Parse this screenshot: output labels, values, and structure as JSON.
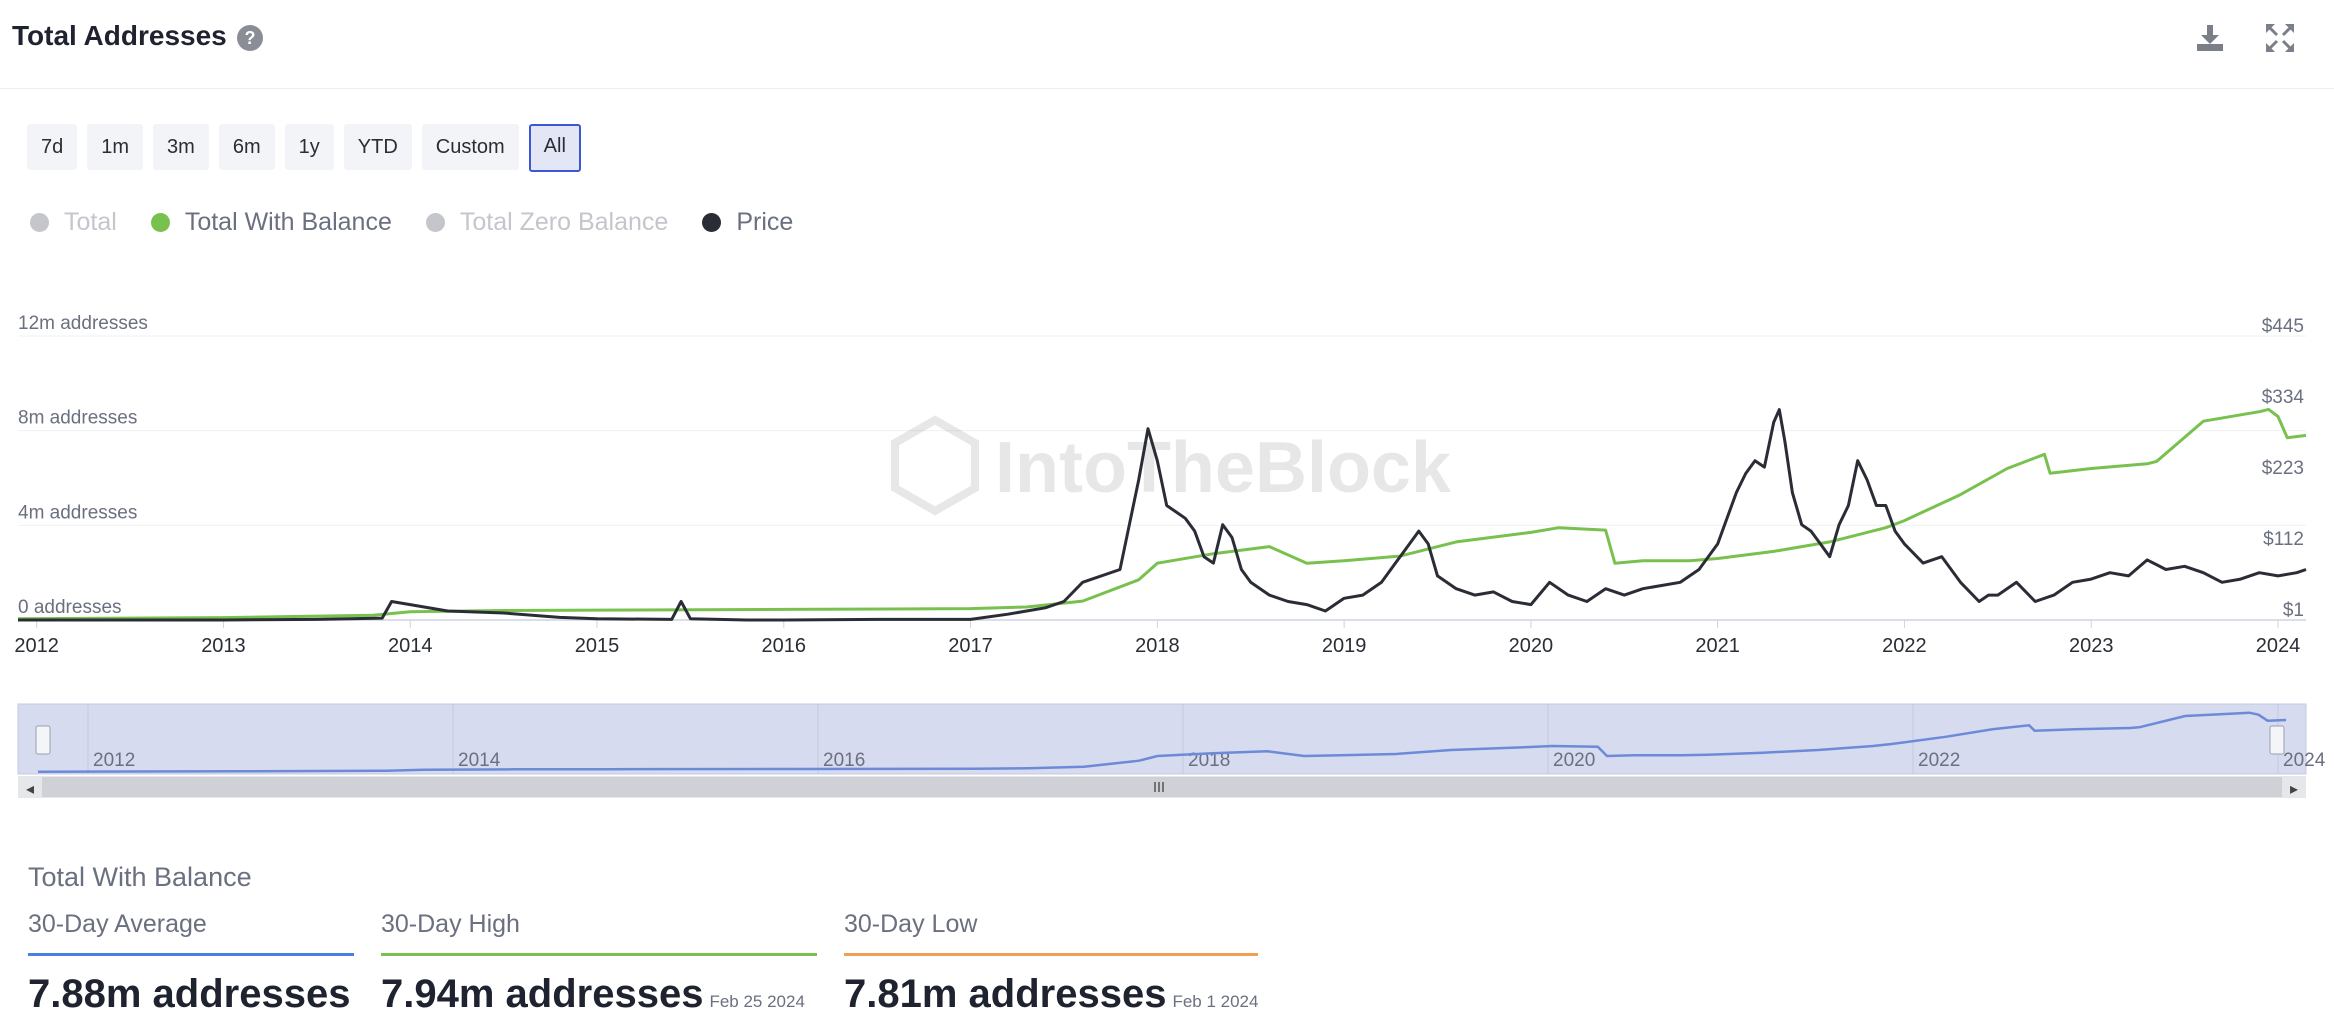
{
  "header": {
    "title": "Total Addresses",
    "help_icon": "question-circle-icon",
    "download_icon": "download-icon",
    "fullscreen_icon": "expand-icon"
  },
  "range_buttons": [
    "7d",
    "1m",
    "3m",
    "6m",
    "1y",
    "YTD",
    "Custom",
    "All"
  ],
  "range_selected": "All",
  "legend": [
    {
      "label": "Total",
      "color": "#c4c6cc",
      "active": false
    },
    {
      "label": "Total With Balance",
      "color": "#79c14f",
      "active": true
    },
    {
      "label": "Total Zero Balance",
      "color": "#c4c6cc",
      "active": false
    },
    {
      "label": "Price",
      "color": "#2a2d36",
      "active": true
    }
  ],
  "watermark": "IntoTheBlock",
  "chart_data": {
    "type": "line",
    "x_ticks": [
      "2012",
      "2013",
      "2014",
      "2015",
      "2016",
      "2017",
      "2018",
      "2019",
      "2020",
      "2021",
      "2022",
      "2023",
      "2024"
    ],
    "xlim": [
      2011.9,
      2024.15
    ],
    "y_left": {
      "ticks": [
        "0 addresses",
        "4m addresses",
        "8m addresses",
        "12m addresses"
      ],
      "range": [
        0,
        12000000
      ]
    },
    "y_right": {
      "ticks": [
        "$1",
        "$112",
        "$223",
        "$334",
        "$445"
      ],
      "range": [
        1,
        445
      ]
    },
    "series": [
      {
        "name": "Total With Balance",
        "axis": "left",
        "color": "#79c14f",
        "x": [
          2011.9,
          2013.0,
          2013.8,
          2014.0,
          2014.5,
          2015.0,
          2016.0,
          2017.0,
          2017.3,
          2017.6,
          2017.9,
          2018.0,
          2018.3,
          2018.6,
          2018.8,
          2019.0,
          2019.3,
          2019.6,
          2020.0,
          2020.15,
          2020.4,
          2020.45,
          2020.6,
          2020.85,
          2021.0,
          2021.3,
          2021.6,
          2021.9,
          2022.0,
          2022.3,
          2022.55,
          2022.75,
          2022.78,
          2023.0,
          2023.3,
          2023.35,
          2023.6,
          2023.9,
          2023.95,
          2024.0,
          2024.05,
          2024.15
        ],
        "values": [
          50000,
          100000,
          200000,
          350000,
          400000,
          420000,
          450000,
          480000,
          550000,
          800000,
          1700000,
          2400000,
          2800000,
          3100000,
          2400000,
          2500000,
          2700000,
          3300000,
          3700000,
          3900000,
          3800000,
          2400000,
          2500000,
          2500000,
          2600000,
          2900000,
          3300000,
          3900000,
          4200000,
          5300000,
          6400000,
          7000000,
          6200000,
          6400000,
          6600000,
          6700000,
          8400000,
          8800000,
          8900000,
          8600000,
          7700000,
          7800000
        ]
      },
      {
        "name": "Price",
        "axis": "right",
        "color": "#2a2d36",
        "x": [
          2011.9,
          2012.5,
          2013.0,
          2013.5,
          2013.85,
          2013.9,
          2014.0,
          2014.2,
          2014.5,
          2014.8,
          2015.0,
          2015.4,
          2015.45,
          2015.5,
          2015.8,
          2016.0,
          2016.5,
          2017.0,
          2017.2,
          2017.4,
          2017.5,
          2017.6,
          2017.8,
          2017.9,
          2017.95,
          2018.0,
          2018.05,
          2018.1,
          2018.15,
          2018.2,
          2018.25,
          2018.3,
          2018.35,
          2018.4,
          2018.45,
          2018.5,
          2018.6,
          2018.7,
          2018.8,
          2018.9,
          2019.0,
          2019.1,
          2019.2,
          2019.3,
          2019.4,
          2019.45,
          2019.5,
          2019.6,
          2019.7,
          2019.8,
          2019.9,
          2020.0,
          2020.1,
          2020.2,
          2020.3,
          2020.4,
          2020.5,
          2020.6,
          2020.7,
          2020.8,
          2020.9,
          2021.0,
          2021.05,
          2021.1,
          2021.15,
          2021.2,
          2021.25,
          2021.3,
          2021.33,
          2021.36,
          2021.4,
          2021.45,
          2021.5,
          2021.55,
          2021.6,
          2021.65,
          2021.7,
          2021.75,
          2021.8,
          2021.85,
          2021.9,
          2021.95,
          2022.0,
          2022.1,
          2022.2,
          2022.3,
          2022.4,
          2022.45,
          2022.5,
          2022.6,
          2022.7,
          2022.8,
          2022.9,
          2023.0,
          2023.1,
          2023.2,
          2023.3,
          2023.4,
          2023.5,
          2023.6,
          2023.7,
          2023.8,
          2023.9,
          2024.0,
          2024.1,
          2024.15
        ],
        "values": [
          1,
          1,
          1,
          2,
          4,
          30,
          25,
          15,
          12,
          5,
          3,
          2,
          30,
          3,
          1,
          1,
          2,
          2,
          10,
          20,
          30,
          60,
          80,
          220,
          300,
          250,
          180,
          170,
          160,
          140,
          100,
          90,
          150,
          130,
          80,
          60,
          40,
          30,
          25,
          15,
          35,
          40,
          60,
          100,
          140,
          120,
          70,
          50,
          40,
          45,
          30,
          25,
          60,
          40,
          30,
          50,
          40,
          50,
          55,
          60,
          80,
          120,
          160,
          200,
          230,
          250,
          240,
          310,
          330,
          280,
          200,
          150,
          140,
          120,
          100,
          150,
          180,
          250,
          220,
          180,
          180,
          140,
          120,
          90,
          100,
          60,
          30,
          40,
          40,
          60,
          30,
          40,
          60,
          65,
          75,
          70,
          95,
          80,
          85,
          75,
          60,
          65,
          75,
          70,
          75,
          80
        ]
      }
    ]
  },
  "navigator": {
    "labels": [
      "2012",
      "2014",
      "2016",
      "2018",
      "2020",
      "2022",
      "2024"
    ],
    "scroll_handle_icon": "grip-lines-icon",
    "left_arrow": "◂",
    "right_arrow": "▸"
  },
  "summary": {
    "title": "Total With Balance",
    "stats": [
      {
        "label": "30-Day Average",
        "value": "7.88m addresses",
        "date": "",
        "color": "#4a7fe0"
      },
      {
        "label": "30-Day High",
        "value": "7.94m addresses",
        "date": "Feb 25 2024",
        "color": "#79c14f"
      },
      {
        "label": "30-Day Low",
        "value": "7.81m addresses",
        "date": "Feb 1 2024",
        "color": "#f0a050"
      }
    ]
  }
}
